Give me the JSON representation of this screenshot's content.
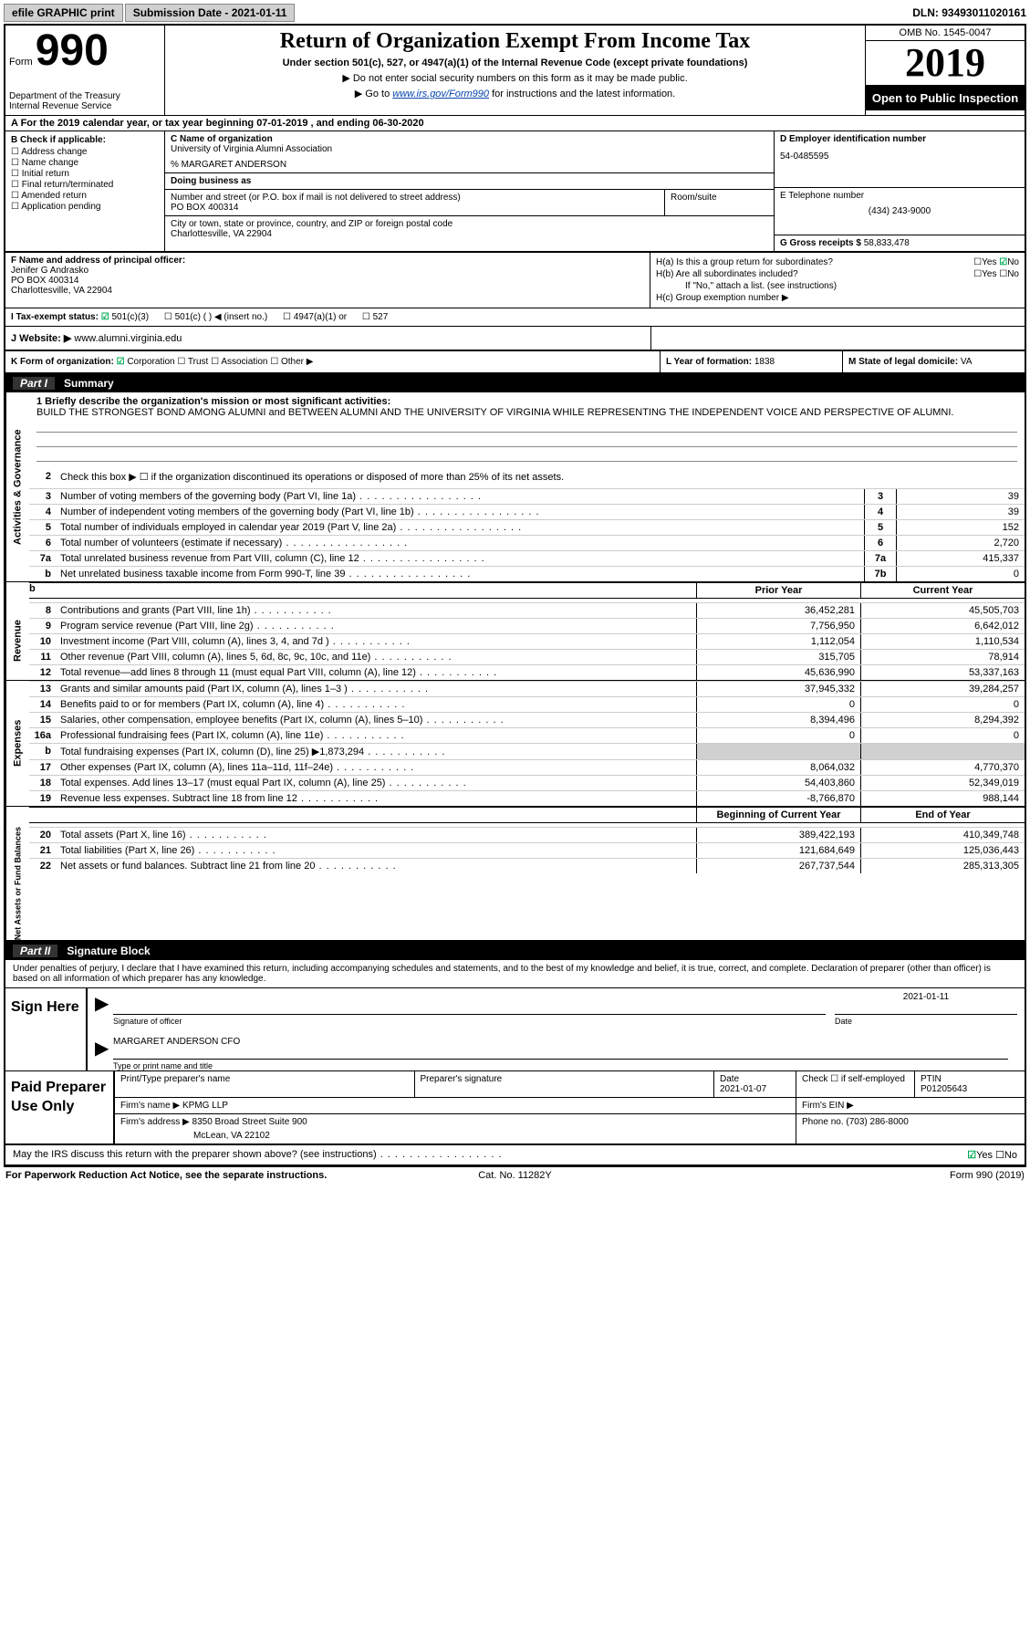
{
  "top": {
    "efile": "efile GRAPHIC print",
    "submission": "Submission Date - 2021-01-11",
    "dln": "DLN: 93493011020161"
  },
  "header": {
    "form_word": "Form",
    "form_num": "990",
    "dept": "Department of the Treasury\nInternal Revenue Service",
    "title": "Return of Organization Exempt From Income Tax",
    "subtitle": "Under section 501(c), 527, or 4947(a)(1) of the Internal Revenue Code (except private foundations)",
    "note1": "▶ Do not enter social security numbers on this form as it may be made public.",
    "note2_pre": "▶ Go to ",
    "note2_link": "www.irs.gov/Form990",
    "note2_post": " for instructions and the latest information.",
    "omb": "OMB No. 1545-0047",
    "year": "2019",
    "open": "Open to Public Inspection"
  },
  "rowA": "A For the 2019 calendar year, or tax year beginning 07-01-2019    , and ending 06-30-2020",
  "B": {
    "hdr": "B Check if applicable:",
    "items": [
      "Address change",
      "Name change",
      "Initial return",
      "Final return/terminated",
      "Amended return",
      "Application pending"
    ]
  },
  "C": {
    "lbl": "C Name of organization",
    "org": "University of Virginia Alumni Association",
    "care": "% MARGARET ANDERSON",
    "dba_lbl": "Doing business as",
    "addr_lbl": "Number and street (or P.O. box if mail is not delivered to street address)",
    "suite_lbl": "Room/suite",
    "addr": "PO BOX 400314",
    "city_lbl": "City or town, state or province, country, and ZIP or foreign postal code",
    "city": "Charlottesville, VA  22904"
  },
  "D": {
    "lbl": "D Employer identification number",
    "val": "54-0485595"
  },
  "E": {
    "lbl": "E Telephone number",
    "val": "(434) 243-9000"
  },
  "G": {
    "lbl": "G Gross receipts $",
    "val": "58,833,478"
  },
  "F": {
    "lbl": "F  Name and address of principal officer:",
    "name": "Jenifer G Andrasko",
    "addr1": "PO BOX 400314",
    "addr2": "Charlottesville, VA  22904"
  },
  "H": {
    "a_lbl": "H(a)  Is this a group return for subordinates?",
    "b_lbl": "H(b)  Are all subordinates included?",
    "b_note": "If \"No,\" attach a list. (see instructions)",
    "c_lbl": "H(c)  Group exemption number ▶"
  },
  "I": {
    "lbl": "I   Tax-exempt status:",
    "opts": [
      "501(c)(3)",
      "501(c) (   ) ◀ (insert no.)",
      "4947(a)(1) or",
      "527"
    ]
  },
  "J": {
    "lbl": "J   Website: ▶",
    "val": "www.alumni.virginia.edu"
  },
  "K": {
    "lbl": "K Form of organization:",
    "opts": [
      "Corporation",
      "Trust",
      "Association",
      "Other ▶"
    ]
  },
  "L": {
    "lbl": "L Year of formation:",
    "val": "1838"
  },
  "M": {
    "lbl": "M State of legal domicile:",
    "val": "VA"
  },
  "part1_hdr": "Summary",
  "mission": {
    "lbl": "1  Briefly describe the organization's mission or most significant activities:",
    "text": "BUILD THE STRONGEST BOND AMONG ALUMNI and BETWEEN ALUMNI AND THE UNIVERSITY OF VIRGINIA WHILE REPRESENTING THE INDEPENDENT VOICE AND PERSPECTIVE OF ALUMNI."
  },
  "line2": "Check this box ▶ ☐  if the organization discontinued its operations or disposed of more than 25% of its net assets.",
  "gov_rows": [
    {
      "n": "3",
      "desc": "Number of voting members of the governing body (Part VI, line 1a)",
      "box": "3",
      "val": "39"
    },
    {
      "n": "4",
      "desc": "Number of independent voting members of the governing body (Part VI, line 1b)",
      "box": "4",
      "val": "39"
    },
    {
      "n": "5",
      "desc": "Total number of individuals employed in calendar year 2019 (Part V, line 2a)",
      "box": "5",
      "val": "152"
    },
    {
      "n": "6",
      "desc": "Total number of volunteers (estimate if necessary)",
      "box": "6",
      "val": "2,720"
    },
    {
      "n": "7a",
      "desc": "Total unrelated business revenue from Part VIII, column (C), line 12",
      "box": "7a",
      "val": "415,337"
    },
    {
      "n": "b",
      "desc": "Net unrelated business taxable income from Form 990-T, line 39",
      "box": "7b",
      "val": "0"
    }
  ],
  "col_hdr": {
    "prior": "Prior Year",
    "current": "Current Year"
  },
  "revenue": [
    {
      "n": "8",
      "desc": "Contributions and grants (Part VIII, line 1h)",
      "c1": "36,452,281",
      "c2": "45,505,703"
    },
    {
      "n": "9",
      "desc": "Program service revenue (Part VIII, line 2g)",
      "c1": "7,756,950",
      "c2": "6,642,012"
    },
    {
      "n": "10",
      "desc": "Investment income (Part VIII, column (A), lines 3, 4, and 7d )",
      "c1": "1,112,054",
      "c2": "1,110,534"
    },
    {
      "n": "11",
      "desc": "Other revenue (Part VIII, column (A), lines 5, 6d, 8c, 9c, 10c, and 11e)",
      "c1": "315,705",
      "c2": "78,914"
    },
    {
      "n": "12",
      "desc": "Total revenue—add lines 8 through 11 (must equal Part VIII, column (A), line 12)",
      "c1": "45,636,990",
      "c2": "53,337,163"
    }
  ],
  "expenses": [
    {
      "n": "13",
      "desc": "Grants and similar amounts paid (Part IX, column (A), lines 1–3 )",
      "c1": "37,945,332",
      "c2": "39,284,257"
    },
    {
      "n": "14",
      "desc": "Benefits paid to or for members (Part IX, column (A), line 4)",
      "c1": "0",
      "c2": "0"
    },
    {
      "n": "15",
      "desc": "Salaries, other compensation, employee benefits (Part IX, column (A), lines 5–10)",
      "c1": "8,394,496",
      "c2": "8,294,392"
    },
    {
      "n": "16a",
      "desc": "Professional fundraising fees (Part IX, column (A), line 11e)",
      "c1": "0",
      "c2": "0"
    },
    {
      "n": "b",
      "desc": "Total fundraising expenses (Part IX, column (D), line 25) ▶1,873,294",
      "c1": "shade",
      "c2": "shade"
    },
    {
      "n": "17",
      "desc": "Other expenses (Part IX, column (A), lines 11a–11d, 11f–24e)",
      "c1": "8,064,032",
      "c2": "4,770,370"
    },
    {
      "n": "18",
      "desc": "Total expenses. Add lines 13–17 (must equal Part IX, column (A), line 25)",
      "c1": "54,403,860",
      "c2": "52,349,019"
    },
    {
      "n": "19",
      "desc": "Revenue less expenses. Subtract line 18 from line 12",
      "c1": "-8,766,870",
      "c2": "988,144"
    }
  ],
  "net_hdr": {
    "c1": "Beginning of Current Year",
    "c2": "End of Year"
  },
  "net": [
    {
      "n": "20",
      "desc": "Total assets (Part X, line 16)",
      "c1": "389,422,193",
      "c2": "410,349,748"
    },
    {
      "n": "21",
      "desc": "Total liabilities (Part X, line 26)",
      "c1": "121,684,649",
      "c2": "125,036,443"
    },
    {
      "n": "22",
      "desc": "Net assets or fund balances. Subtract line 21 from line 20",
      "c1": "267,737,544",
      "c2": "285,313,305"
    }
  ],
  "tabs": {
    "t1": "Activities & Governance",
    "t2": "Revenue",
    "t3": "Expenses",
    "t4": "Net Assets or Fund Balances"
  },
  "part2_hdr": "Signature Block",
  "p2_text": "Under penalties of perjury, I declare that I have examined this return, including accompanying schedules and statements, and to the best of my knowledge and belief, it is true, correct, and complete. Declaration of preparer (other than officer) is based on all information of which preparer has any knowledge.",
  "sign": {
    "left": "Sign Here",
    "sig_lbl": "Signature of officer",
    "date_lbl": "Date",
    "date_val": "2021-01-11",
    "name": "MARGARET ANDERSON  CFO",
    "name_lbl": "Type or print name and title"
  },
  "prep": {
    "left": "Paid Preparer Use Only",
    "pt_lbl": "Print/Type preparer's name",
    "sig_lbl": "Preparer's signature",
    "date_lbl": "Date",
    "date_val": "2021-01-07",
    "check_lbl": "Check ☐ if self-employed",
    "ptin_lbl": "PTIN",
    "ptin_val": "P01205643",
    "firm_name_lbl": "Firm's name   ▶",
    "firm_name": "KPMG LLP",
    "firm_ein_lbl": "Firm's EIN ▶",
    "firm_addr_lbl": "Firm's address ▶",
    "firm_addr1": "8350 Broad Street Suite 900",
    "firm_addr2": "McLean, VA  22102",
    "phone_lbl": "Phone no.",
    "phone_val": "(703) 286-8000"
  },
  "discuss": "May the IRS discuss this return with the preparer shown above? (see instructions)",
  "footer": {
    "f1": "For Paperwork Reduction Act Notice, see the separate instructions.",
    "f2": "Cat. No. 11282Y",
    "f3": "Form 990 (2019)"
  }
}
